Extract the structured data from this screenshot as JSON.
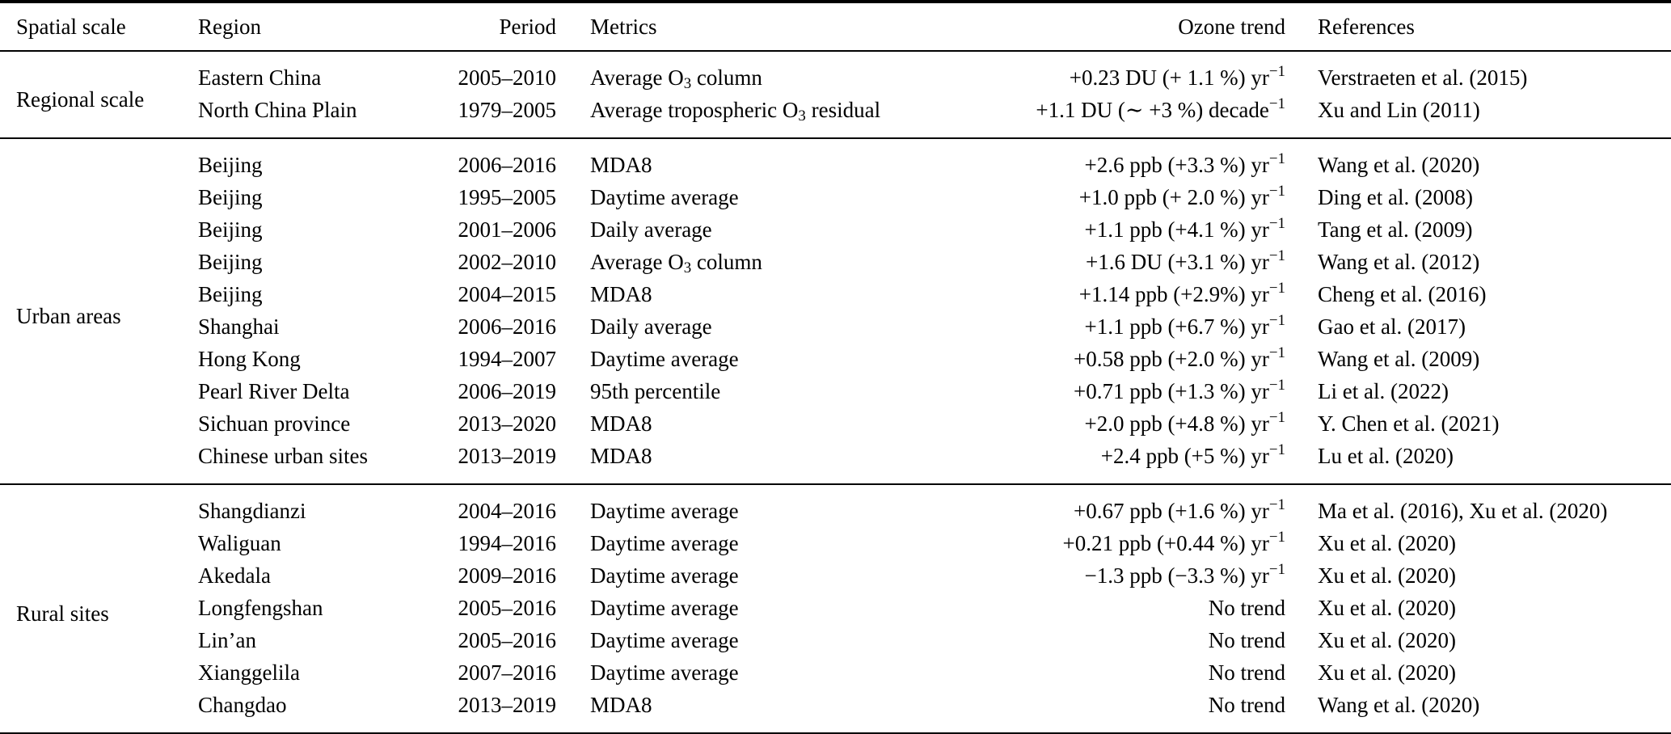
{
  "colors": {
    "text": "#000000",
    "background": "#ffffff",
    "rule": "#000000"
  },
  "table": {
    "columns": [
      "Spatial scale",
      "Region",
      "Period",
      "Metrics",
      "Ozone trend",
      "References"
    ],
    "groups": [
      {
        "scale": "Regional scale",
        "rows": [
          {
            "region": "Eastern China",
            "period": "2005–2010",
            "metric": "Average O_{3} column",
            "trend": "+0.23 DU (+ 1.1 %) yr^{−1}",
            "reference": "Verstraeten et al. (2015)"
          },
          {
            "region": "North China Plain",
            "period": "1979–2005",
            "metric": "Average tropospheric O_{3} residual",
            "trend": "+1.1 DU (∼ +3 %) decade^{−1}",
            "reference": "Xu and Lin (2011)"
          }
        ]
      },
      {
        "scale": "Urban areas",
        "rows": [
          {
            "region": "Beijing",
            "period": "2006–2016",
            "metric": "MDA8",
            "trend": "+2.6 ppb (+3.3 %) yr^{−1}",
            "reference": "Wang et al. (2020)"
          },
          {
            "region": "Beijing",
            "period": "1995–2005",
            "metric": "Daytime average",
            "trend": "+1.0 ppb (+ 2.0 %) yr^{−1}",
            "reference": "Ding et al. (2008)"
          },
          {
            "region": "Beijing",
            "period": "2001–2006",
            "metric": "Daily average",
            "trend": "+1.1 ppb (+4.1 %) yr^{−1}",
            "reference": "Tang et al. (2009)"
          },
          {
            "region": "Beijing",
            "period": "2002–2010",
            "metric": "Average O_{3} column",
            "trend": "+1.6 DU (+3.1 %) yr^{−1}",
            "reference": "Wang et al. (2012)"
          },
          {
            "region": "Beijing",
            "period": "2004–2015",
            "metric": "MDA8",
            "trend": "+1.14 ppb (+2.9%) yr^{−1}",
            "reference": "Cheng et al. (2016)"
          },
          {
            "region": "Shanghai",
            "period": "2006–2016",
            "metric": "Daily average",
            "trend": "+1.1 ppb (+6.7 %) yr^{−1}",
            "reference": "Gao et al. (2017)"
          },
          {
            "region": "Hong Kong",
            "period": "1994–2007",
            "metric": "Daytime average",
            "trend": "+0.58 ppb (+2.0 %) yr^{−1}",
            "reference": "Wang et al. (2009)"
          },
          {
            "region": "Pearl River Delta",
            "period": "2006–2019",
            "metric": "95th percentile",
            "trend": "+0.71 ppb (+1.3 %) yr^{−1}",
            "reference": "Li et al. (2022)"
          },
          {
            "region": "Sichuan province",
            "period": "2013–2020",
            "metric": "MDA8",
            "trend": "+2.0 ppb (+4.8 %) yr^{−1}",
            "reference": "Y. Chen et al. (2021)"
          },
          {
            "region": "Chinese urban sites",
            "period": "2013–2019",
            "metric": "MDA8",
            "trend": "+2.4 ppb (+5 %) yr^{−1}",
            "reference": "Lu et al. (2020)"
          }
        ]
      },
      {
        "scale": "Rural sites",
        "rows": [
          {
            "region": "Shangdianzi",
            "period": "2004–2016",
            "metric": "Daytime average",
            "trend": "+0.67 ppb (+1.6 %) yr^{−1}",
            "reference": "Ma et al. (2016), Xu et al. (2020)"
          },
          {
            "region": "Waliguan",
            "period": "1994–2016",
            "metric": "Daytime average",
            "trend": "+0.21 ppb (+0.44 %) yr^{−1}",
            "reference": "Xu et al. (2020)"
          },
          {
            "region": "Akedala",
            "period": "2009–2016",
            "metric": "Daytime average",
            "trend": "−1.3 ppb (−3.3 %) yr^{−1}",
            "reference": "Xu et al. (2020)"
          },
          {
            "region": "Longfengshan",
            "period": "2005–2016",
            "metric": "Daytime average",
            "trend": "No trend",
            "reference": "Xu et al. (2020)"
          },
          {
            "region": "Lin’an",
            "period": "2005–2016",
            "metric": "Daytime average",
            "trend": "No trend",
            "reference": "Xu et al. (2020)"
          },
          {
            "region": "Xianggelila",
            "period": "2007–2016",
            "metric": "Daytime average",
            "trend": "No trend",
            "reference": "Xu et al. (2020)"
          },
          {
            "region": "Changdao",
            "period": "2013–2019",
            "metric": "MDA8",
            "trend": "No trend",
            "reference": "Wang et al. (2020)"
          }
        ]
      }
    ]
  }
}
